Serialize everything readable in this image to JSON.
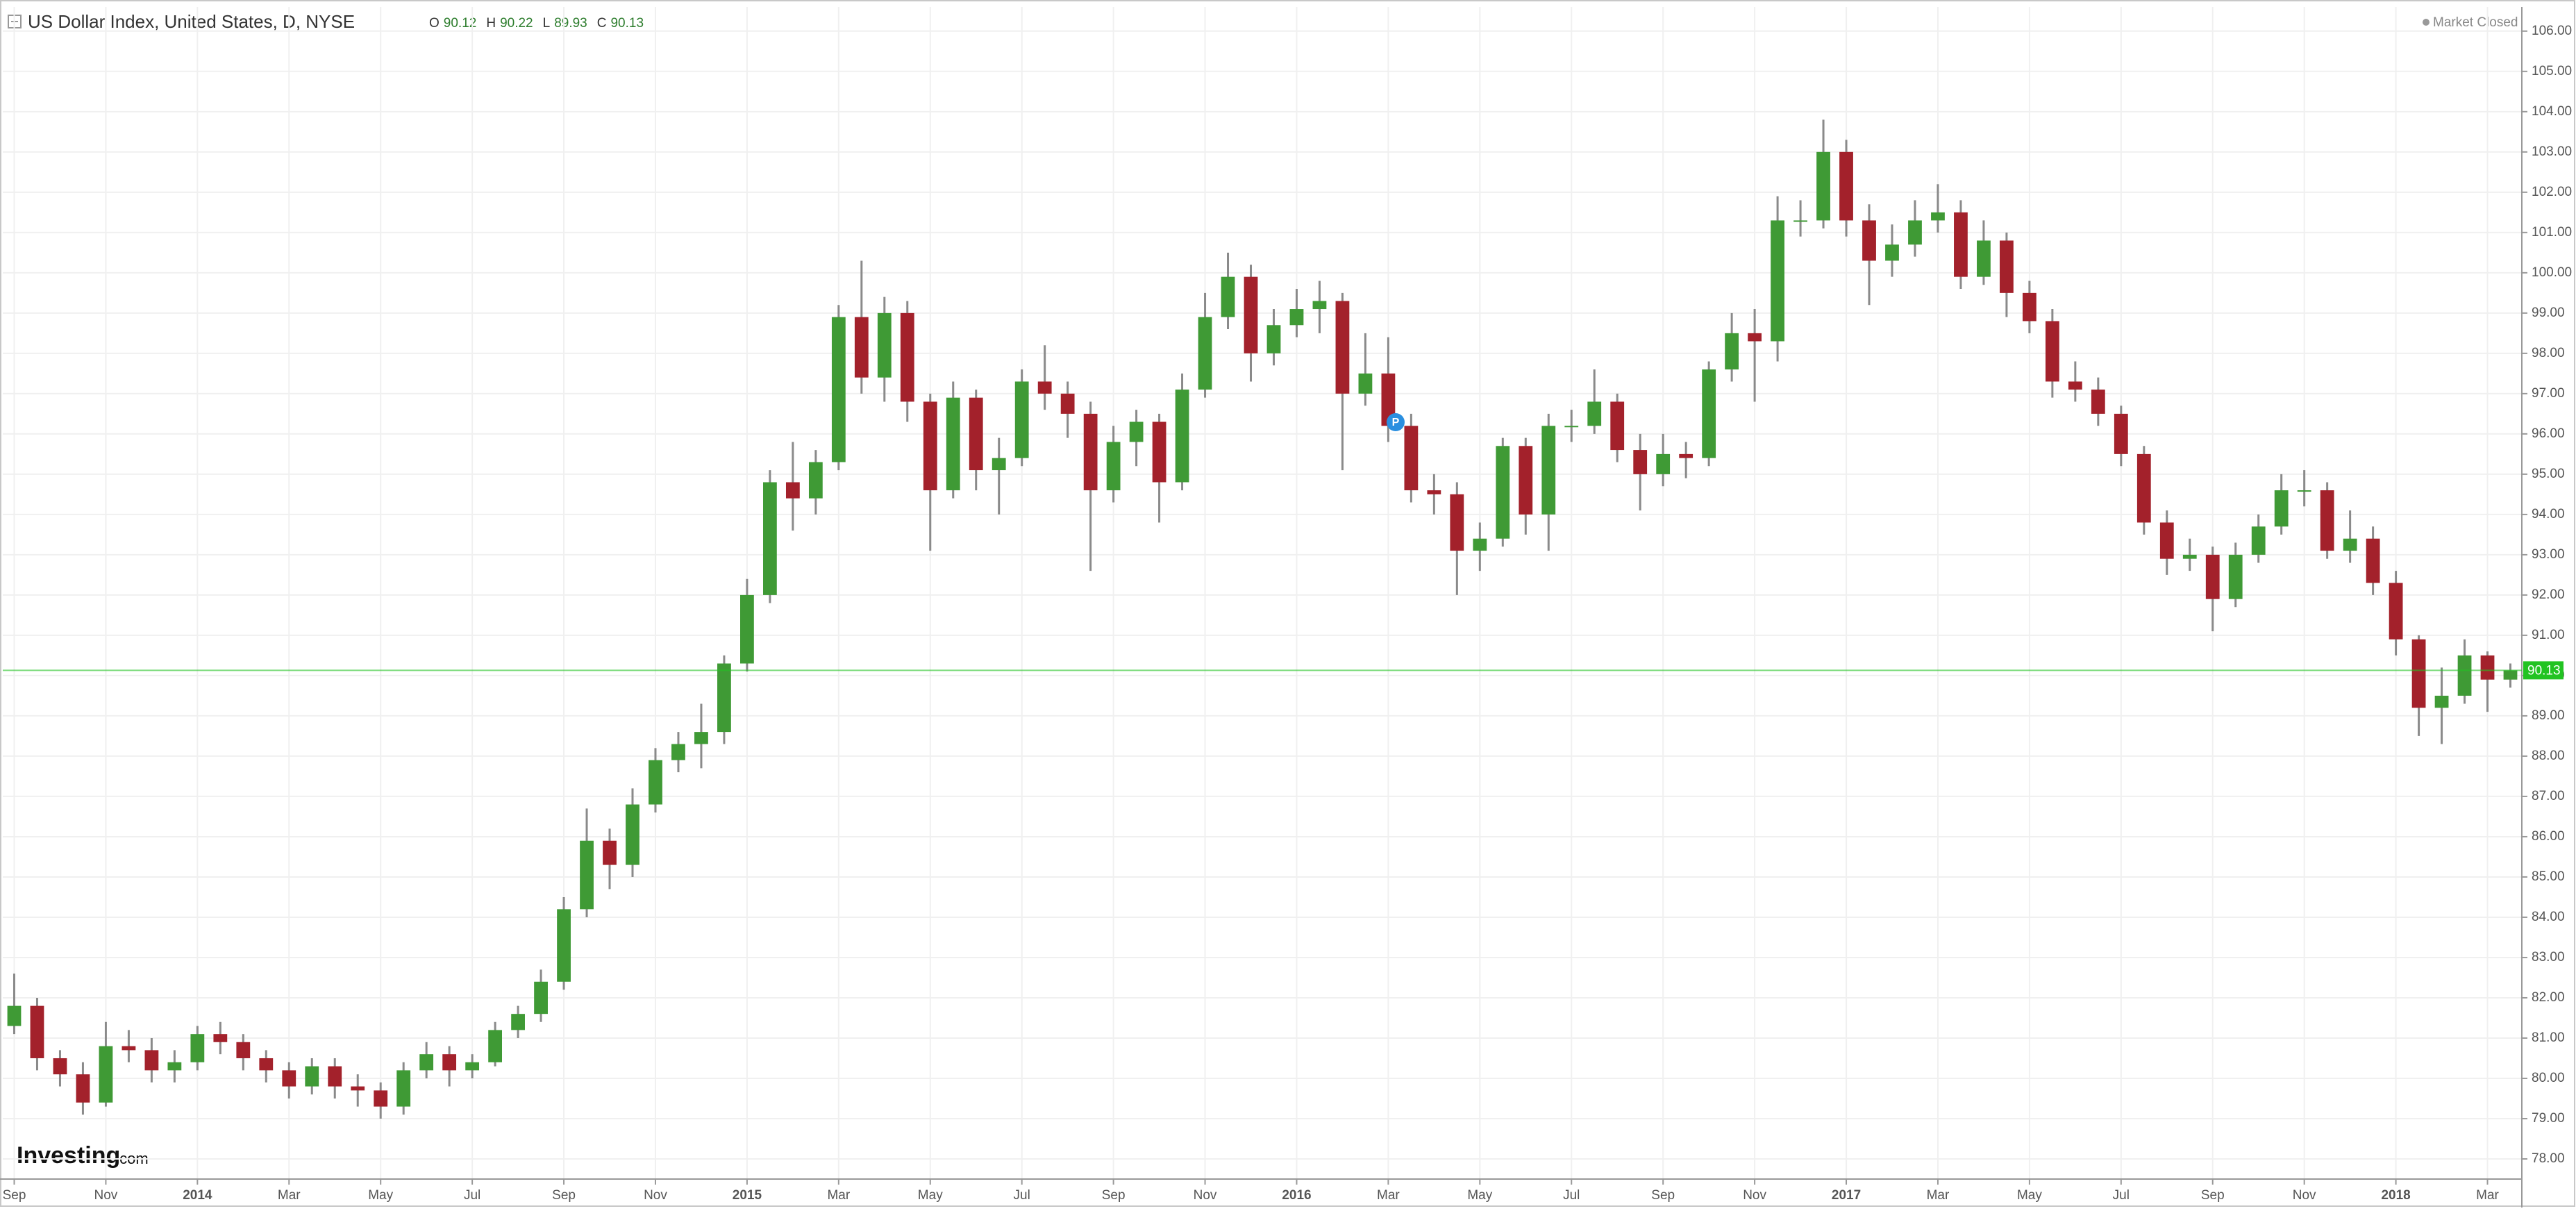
{
  "header": {
    "title": "US Dollar Index, United States, D, NYSE",
    "ohlc": [
      {
        "label": "O",
        "value": 90.12
      },
      {
        "label": "H",
        "value": 90.22
      },
      {
        "label": "L",
        "value": 89.93
      },
      {
        "label": "C",
        "value": 90.13
      }
    ],
    "status": "Market Closed"
  },
  "logo": {
    "name": "Investing",
    "suffix": ".com"
  },
  "marker": "P",
  "chart_data": {
    "type": "candlestick",
    "categories": [
      "Sep",
      null,
      null,
      null,
      "Nov",
      null,
      null,
      null,
      "2014",
      null,
      null,
      null,
      "Mar",
      null,
      null,
      null,
      "May",
      null,
      null,
      null,
      "Jul",
      null,
      null,
      null,
      "Sep",
      null,
      null,
      null,
      "Nov",
      null,
      null,
      null,
      "2015",
      null,
      null,
      null,
      "Mar",
      null,
      null,
      null,
      "May",
      null,
      null,
      null,
      "Jul",
      null,
      null,
      null,
      "Sep",
      null,
      null,
      null,
      "Nov",
      null,
      null,
      null,
      "2016",
      null,
      null,
      null,
      "Mar",
      null,
      null,
      null,
      "May",
      null,
      null,
      null,
      "Jul",
      null,
      null,
      null,
      "Sep",
      null,
      null,
      null,
      "Nov",
      null,
      null,
      null,
      "2017",
      null,
      null,
      null,
      "Mar",
      null,
      null,
      null,
      "May",
      null,
      null,
      null,
      "Jul",
      null,
      null,
      null,
      "Sep",
      null,
      null,
      null,
      "Nov",
      null,
      null,
      null,
      "2018",
      null,
      null,
      null,
      "Mar",
      null
    ],
    "open": [
      81.3,
      81.8,
      80.5,
      80.1,
      79.4,
      80.8,
      80.7,
      80.2,
      80.4,
      81.1,
      80.9,
      80.5,
      80.2,
      79.8,
      80.3,
      79.8,
      79.7,
      79.3,
      80.2,
      80.6,
      80.2,
      80.4,
      81.2,
      81.6,
      82.4,
      84.2,
      85.9,
      85.3,
      86.8,
      87.9,
      88.3,
      88.6,
      90.3,
      92.0,
      94.8,
      94.4,
      95.3,
      98.9,
      97.4,
      99.0,
      96.8,
      94.6,
      96.9,
      95.1,
      95.4,
      97.3,
      97.0,
      96.5,
      94.6,
      95.8,
      96.3,
      94.8,
      97.1,
      98.9,
      99.9,
      98.0,
      98.7,
      99.1,
      99.3,
      97.0,
      97.5,
      96.2,
      94.6,
      94.5,
      93.1,
      93.4,
      95.7,
      94.0,
      96.2,
      96.2,
      96.8,
      95.6,
      95.0,
      95.5,
      95.4,
      97.6,
      98.5,
      98.3,
      101.3,
      101.3,
      103.0,
      101.3,
      100.3,
      100.7,
      101.3,
      101.5,
      99.9,
      100.8,
      99.5,
      98.8,
      97.3,
      97.1,
      96.5,
      95.5,
      93.8,
      92.9,
      93.0,
      91.9,
      93.0,
      93.7,
      94.6,
      94.6,
      93.1,
      93.4,
      92.3,
      90.9,
      89.2,
      89.5,
      90.5,
      89.9
    ],
    "high": [
      82.6,
      82.0,
      80.7,
      80.4,
      81.4,
      81.2,
      81.0,
      80.7,
      81.3,
      81.4,
      81.1,
      80.7,
      80.4,
      80.5,
      80.5,
      80.1,
      79.9,
      80.4,
      80.9,
      80.8,
      80.6,
      81.4,
      81.8,
      82.7,
      84.5,
      86.7,
      86.2,
      87.2,
      88.2,
      88.6,
      89.3,
      90.5,
      92.4,
      95.1,
      95.8,
      95.6,
      99.2,
      100.3,
      99.4,
      99.3,
      97.0,
      97.3,
      97.1,
      95.9,
      97.6,
      98.2,
      97.3,
      96.8,
      96.2,
      96.6,
      96.5,
      97.5,
      99.5,
      100.5,
      100.2,
      99.1,
      99.6,
      99.8,
      99.5,
      98.5,
      98.4,
      96.5,
      95.0,
      94.8,
      93.8,
      95.9,
      95.9,
      96.5,
      96.6,
      97.6,
      97.0,
      96.0,
      96.0,
      95.8,
      97.8,
      99.0,
      99.1,
      101.9,
      101.8,
      103.8,
      103.3,
      101.7,
      101.2,
      101.8,
      102.2,
      101.8,
      101.3,
      101.0,
      99.8,
      99.1,
      97.8,
      97.4,
      96.7,
      95.7,
      94.1,
      93.4,
      93.2,
      93.3,
      94.0,
      95.0,
      95.1,
      94.8,
      94.1,
      93.7,
      92.6,
      91.0,
      90.2,
      90.9,
      90.6,
      90.3
    ],
    "low": [
      81.1,
      80.2,
      79.8,
      79.1,
      79.3,
      80.4,
      79.9,
      79.9,
      80.2,
      80.6,
      80.2,
      79.9,
      79.5,
      79.6,
      79.5,
      79.3,
      79.0,
      79.1,
      80.0,
      79.8,
      80.0,
      80.3,
      81.0,
      81.4,
      82.2,
      84.0,
      84.7,
      85.0,
      86.6,
      87.6,
      87.7,
      88.3,
      90.1,
      91.8,
      93.6,
      94.0,
      95.1,
      97.0,
      96.8,
      96.3,
      93.1,
      94.4,
      94.6,
      94.0,
      95.2,
      96.6,
      95.9,
      92.6,
      94.3,
      95.2,
      93.8,
      94.6,
      96.9,
      98.6,
      97.3,
      97.7,
      98.4,
      98.5,
      95.1,
      96.7,
      95.8,
      94.3,
      94.0,
      92.0,
      92.6,
      93.2,
      93.5,
      93.1,
      95.8,
      96.0,
      95.3,
      94.1,
      94.7,
      94.9,
      95.2,
      97.3,
      96.8,
      97.8,
      100.9,
      101.1,
      100.9,
      99.2,
      99.9,
      100.4,
      101.0,
      99.6,
      99.7,
      98.9,
      98.5,
      96.9,
      96.8,
      96.2,
      95.2,
      93.5,
      92.5,
      92.6,
      91.1,
      91.7,
      92.8,
      93.5,
      94.2,
      92.9,
      92.8,
      92.0,
      90.5,
      88.5,
      88.3,
      89.3,
      89.1,
      89.7
    ],
    "close": [
      81.8,
      80.5,
      80.1,
      79.4,
      80.8,
      80.7,
      80.2,
      80.4,
      81.1,
      80.9,
      80.5,
      80.2,
      79.8,
      80.3,
      79.8,
      79.7,
      79.3,
      80.2,
      80.6,
      80.2,
      80.4,
      81.2,
      81.6,
      82.4,
      84.2,
      85.9,
      85.3,
      86.8,
      87.9,
      88.3,
      88.6,
      90.3,
      92.0,
      94.8,
      94.4,
      95.3,
      98.9,
      97.4,
      99.0,
      96.8,
      94.6,
      96.9,
      95.1,
      95.4,
      97.3,
      97.0,
      96.5,
      94.6,
      95.8,
      96.3,
      94.8,
      97.1,
      98.9,
      99.9,
      98.0,
      98.7,
      99.1,
      99.3,
      97.0,
      97.5,
      96.2,
      94.6,
      94.5,
      93.1,
      93.4,
      95.7,
      94.0,
      96.2,
      96.2,
      96.8,
      95.6,
      95.0,
      95.5,
      95.4,
      97.6,
      98.5,
      98.3,
      101.3,
      101.3,
      103.0,
      101.3,
      100.3,
      100.7,
      101.3,
      101.5,
      99.9,
      100.8,
      99.5,
      98.8,
      97.3,
      97.1,
      96.5,
      95.5,
      93.8,
      92.9,
      93.0,
      91.9,
      93.0,
      93.7,
      94.6,
      94.6,
      93.1,
      93.4,
      92.3,
      90.9,
      89.2,
      89.5,
      90.5,
      89.9,
      90.13
    ],
    "up_color": "#3f9a35",
    "down_color": "#a3212b",
    "wick_color": "#8a8a8a",
    "last_price": 90.13,
    "last_color": "#22c322",
    "ylim": [
      77.5,
      106.6
    ],
    "yticks": [
      {
        "value": 78,
        "label": "78.00"
      },
      {
        "value": 79,
        "label": "79.00"
      },
      {
        "value": 80,
        "label": "80.00"
      },
      {
        "value": 81,
        "label": "81.00"
      },
      {
        "value": 82,
        "label": "82.00"
      },
      {
        "value": 83,
        "label": "83.00"
      },
      {
        "value": 84,
        "label": "84.00"
      },
      {
        "value": 85,
        "label": "85.00"
      },
      {
        "value": 86,
        "label": "86.00"
      },
      {
        "value": 87,
        "label": "87.00"
      },
      {
        "value": 88,
        "label": "88.00"
      },
      {
        "value": 89,
        "label": "89.00"
      },
      {
        "value": 90,
        "label": "90.00"
      },
      {
        "value": 91,
        "label": "91.00"
      },
      {
        "value": 92,
        "label": "92.00"
      },
      {
        "value": 93,
        "label": "93.00"
      },
      {
        "value": 94,
        "label": "94.00"
      },
      {
        "value": 95,
        "label": "95.00"
      },
      {
        "value": 96,
        "label": "96.00"
      },
      {
        "value": 97,
        "label": "97.00"
      },
      {
        "value": 98,
        "label": "98.00"
      },
      {
        "value": 99,
        "label": "99.00"
      },
      {
        "value": 100,
        "label": "100.00"
      },
      {
        "value": 101,
        "label": "101.00"
      },
      {
        "value": 102,
        "label": "102.00"
      },
      {
        "value": 103,
        "label": "103.00"
      },
      {
        "value": 104,
        "label": "104.00"
      },
      {
        "value": 105,
        "label": "105.00"
      },
      {
        "value": 106,
        "label": "106.00"
      }
    ],
    "grid": true
  }
}
